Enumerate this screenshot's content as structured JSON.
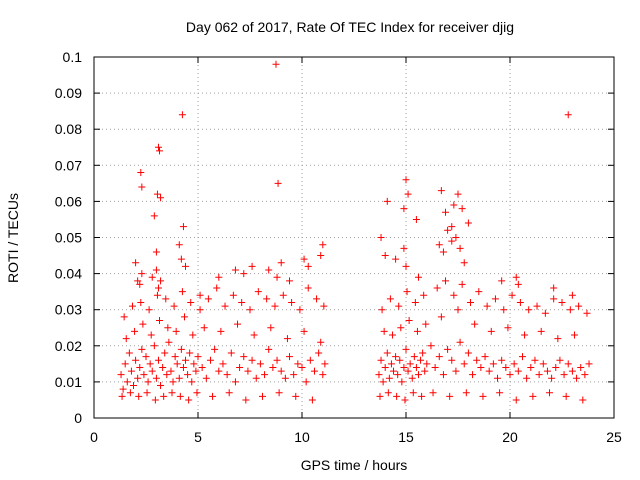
{
  "chart_data": {
    "type": "scatter",
    "title": "Day 062 of 2017, Rate Of TEC Index for receiver djig",
    "xlabel": "GPS time / hours",
    "ylabel": "ROTI / TECUs",
    "xlim": [
      0,
      25
    ],
    "ylim": [
      0,
      0.1
    ],
    "xticks": [
      0,
      5,
      10,
      15,
      20,
      25
    ],
    "xtick_labels": [
      "0",
      "5",
      "10",
      "15",
      "20",
      "25"
    ],
    "yticks": [
      0,
      0.01,
      0.02,
      0.03,
      0.04,
      0.05,
      0.06,
      0.07,
      0.08,
      0.09,
      0.1
    ],
    "ytick_labels": [
      "0",
      "0.01",
      "0.02",
      "0.03",
      "0.04",
      "0.05",
      "0.06",
      "0.07",
      "0.08",
      "0.09",
      "0.1"
    ],
    "grid": true,
    "marker": "+",
    "color": "#ff0000",
    "series": [
      {
        "x": [
          1.3,
          1.4,
          1.5,
          1.6,
          1.7,
          1.8,
          1.9,
          2.0,
          2.1,
          2.2,
          2.3,
          2.4,
          2.5,
          2.6,
          2.7,
          2.8,
          2.9,
          3.0,
          3.1,
          3.2,
          3.3,
          3.4,
          3.5,
          3.6,
          3.7,
          3.8,
          3.9,
          4.0,
          4.1,
          4.2,
          4.3,
          4.4,
          4.5,
          4.6,
          4.7,
          4.8,
          4.9,
          5.0,
          5.2,
          5.4,
          5.6,
          5.8,
          6.0,
          6.2,
          6.4,
          6.6,
          6.8,
          7.0,
          7.2,
          7.4,
          7.6,
          7.8,
          8.0,
          8.2,
          8.4,
          8.6,
          8.8,
          9.0,
          9.2,
          9.4,
          9.6,
          9.8,
          10.0,
          10.2,
          10.4,
          10.6,
          10.8,
          11.0,
          11.1,
          1.35,
          1.55,
          1.75,
          1.95,
          2.15,
          2.35,
          2.55,
          2.75,
          2.95,
          3.15,
          3.35,
          3.55,
          3.75,
          3.95,
          4.15,
          4.35,
          4.55,
          4.75,
          4.95,
          5.3,
          5.7,
          6.1,
          6.5,
          6.9,
          7.3,
          7.7,
          8.1,
          8.5,
          8.9,
          9.3,
          9.7,
          10.1,
          10.5,
          10.9,
          1.45,
          1.85,
          2.25,
          2.65,
          3.05,
          3.45,
          3.85,
          4.25,
          4.65,
          5.1,
          5.5,
          5.9,
          6.3,
          6.7,
          7.1,
          7.5,
          7.9,
          8.3,
          8.7,
          9.1,
          9.5,
          9.9,
          10.3,
          10.7,
          11.05,
          2.0,
          2.1,
          2.2,
          2.3,
          2.8,
          3.0,
          3.1,
          3.2,
          4.1,
          4.2,
          4.4,
          6.0,
          6.8,
          7.2,
          7.6,
          8.4,
          8.8,
          9.0,
          9.4,
          10.1,
          10.3,
          10.9,
          11.0,
          2.25,
          2.3,
          2.9,
          3.05,
          3.1,
          3.15,
          3.2,
          4.25,
          8.75,
          8.85,
          4.3,
          3.0,
          5.1
        ],
        "y": [
          0.012,
          0.008,
          0.015,
          0.01,
          0.018,
          0.013,
          0.009,
          0.016,
          0.011,
          0.014,
          0.019,
          0.012,
          0.017,
          0.01,
          0.015,
          0.013,
          0.02,
          0.011,
          0.016,
          0.009,
          0.014,
          0.018,
          0.012,
          0.021,
          0.013,
          0.01,
          0.017,
          0.015,
          0.011,
          0.019,
          0.014,
          0.016,
          0.012,
          0.018,
          0.01,
          0.015,
          0.013,
          0.017,
          0.014,
          0.011,
          0.016,
          0.019,
          0.013,
          0.015,
          0.012,
          0.018,
          0.01,
          0.014,
          0.017,
          0.013,
          0.016,
          0.011,
          0.015,
          0.012,
          0.019,
          0.014,
          0.016,
          0.013,
          0.011,
          0.017,
          0.012,
          0.015,
          0.014,
          0.01,
          0.016,
          0.013,
          0.018,
          0.012,
          0.015,
          0.006,
          0.022,
          0.007,
          0.024,
          0.006,
          0.026,
          0.007,
          0.023,
          0.005,
          0.027,
          0.006,
          0.025,
          0.007,
          0.024,
          0.006,
          0.028,
          0.005,
          0.023,
          0.007,
          0.025,
          0.006,
          0.024,
          0.007,
          0.026,
          0.005,
          0.023,
          0.006,
          0.025,
          0.007,
          0.022,
          0.006,
          0.024,
          0.005,
          0.021,
          0.028,
          0.031,
          0.032,
          0.03,
          0.034,
          0.033,
          0.031,
          0.035,
          0.032,
          0.03,
          0.033,
          0.036,
          0.031,
          0.034,
          0.032,
          0.03,
          0.035,
          0.033,
          0.031,
          0.034,
          0.032,
          0.03,
          0.036,
          0.033,
          0.031,
          0.043,
          0.038,
          0.037,
          0.04,
          0.039,
          0.041,
          0.036,
          0.038,
          0.048,
          0.044,
          0.042,
          0.039,
          0.041,
          0.04,
          0.042,
          0.041,
          0.039,
          0.043,
          0.038,
          0.044,
          0.042,
          0.045,
          0.048,
          0.068,
          0.064,
          0.056,
          0.062,
          0.075,
          0.074,
          0.061,
          0.084,
          0.098,
          0.065,
          0.053,
          0.046,
          0.034
        ]
      },
      {
        "x": [
          13.7,
          13.8,
          13.9,
          14.0,
          14.1,
          14.2,
          14.3,
          14.4,
          14.5,
          14.6,
          14.7,
          14.8,
          14.9,
          15.0,
          15.1,
          15.2,
          15.3,
          15.4,
          15.5,
          15.6,
          15.7,
          15.8,
          15.9,
          16.0,
          16.2,
          16.4,
          16.6,
          16.8,
          17.0,
          17.2,
          17.4,
          17.6,
          17.8,
          18.0,
          18.2,
          18.4,
          18.6,
          18.8,
          19.0,
          19.2,
          19.4,
          19.6,
          19.8,
          20.0,
          20.2,
          20.4,
          20.6,
          20.8,
          21.0,
          21.2,
          21.4,
          21.6,
          21.8,
          22.0,
          22.2,
          22.4,
          22.6,
          22.8,
          23.0,
          23.2,
          23.4,
          23.6,
          23.8,
          13.75,
          13.95,
          14.15,
          14.35,
          14.55,
          14.75,
          14.95,
          15.15,
          15.35,
          15.55,
          15.75,
          15.95,
          16.3,
          16.7,
          17.1,
          17.5,
          17.9,
          18.3,
          18.7,
          19.1,
          19.5,
          19.9,
          20.3,
          20.7,
          21.1,
          21.5,
          21.9,
          22.3,
          22.7,
          23.1,
          23.5,
          13.85,
          14.25,
          14.65,
          15.05,
          15.45,
          15.85,
          16.5,
          16.9,
          17.3,
          17.7,
          18.1,
          18.5,
          18.9,
          19.3,
          19.7,
          20.1,
          20.5,
          20.9,
          21.3,
          21.7,
          22.1,
          22.5,
          22.9,
          23.3,
          23.7,
          13.8,
          14.0,
          14.5,
          14.9,
          15.0,
          15.6,
          16.6,
          16.8,
          17.0,
          17.2,
          17.4,
          17.6,
          17.8,
          19.6,
          20.3,
          20.4,
          22.1,
          23.0,
          14.1,
          14.9,
          15.0,
          15.1,
          15.5,
          16.7,
          16.9,
          17.3,
          17.5,
          17.7,
          17.2,
          18.0,
          22.8
        ],
        "y": [
          0.012,
          0.016,
          0.01,
          0.014,
          0.018,
          0.011,
          0.015,
          0.013,
          0.017,
          0.012,
          0.016,
          0.01,
          0.014,
          0.019,
          0.013,
          0.015,
          0.011,
          0.017,
          0.014,
          0.012,
          0.016,
          0.018,
          0.013,
          0.015,
          0.02,
          0.014,
          0.017,
          0.012,
          0.019,
          0.016,
          0.013,
          0.021,
          0.015,
          0.018,
          0.012,
          0.016,
          0.014,
          0.017,
          0.013,
          0.015,
          0.011,
          0.016,
          0.014,
          0.012,
          0.015,
          0.013,
          0.017,
          0.011,
          0.014,
          0.016,
          0.012,
          0.015,
          0.013,
          0.011,
          0.014,
          0.016,
          0.012,
          0.015,
          0.013,
          0.011,
          0.014,
          0.012,
          0.015,
          0.006,
          0.024,
          0.007,
          0.023,
          0.006,
          0.025,
          0.005,
          0.027,
          0.007,
          0.024,
          0.006,
          0.026,
          0.007,
          0.028,
          0.006,
          0.03,
          0.007,
          0.026,
          0.006,
          0.024,
          0.007,
          0.025,
          0.005,
          0.023,
          0.006,
          0.024,
          0.007,
          0.022,
          0.006,
          0.023,
          0.005,
          0.03,
          0.033,
          0.031,
          0.035,
          0.032,
          0.034,
          0.036,
          0.038,
          0.034,
          0.037,
          0.032,
          0.035,
          0.031,
          0.033,
          0.03,
          0.034,
          0.032,
          0.03,
          0.031,
          0.029,
          0.033,
          0.032,
          0.03,
          0.031,
          0.029,
          0.05,
          0.045,
          0.044,
          0.047,
          0.042,
          0.039,
          0.048,
          0.046,
          0.052,
          0.049,
          0.05,
          0.047,
          0.043,
          0.038,
          0.039,
          0.037,
          0.036,
          0.034,
          0.06,
          0.058,
          0.066,
          0.062,
          0.055,
          0.063,
          0.057,
          0.059,
          0.062,
          0.058,
          0.053,
          0.054,
          0.084
        ]
      }
    ]
  }
}
